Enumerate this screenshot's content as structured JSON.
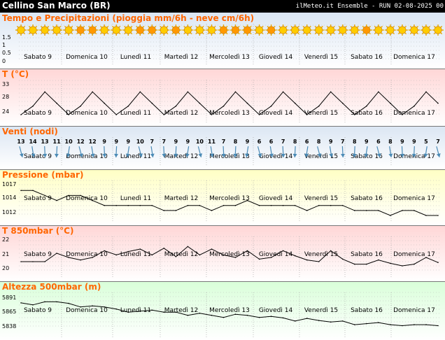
{
  "header": {
    "title": "Cellino San Marco (BR)",
    "run_label": "ilMeteo.it Ensemble - RUN 02-08-2025 00"
  },
  "days": [
    "Sabato 9",
    "Domenica 10",
    "Lunedì 11",
    "Martedì 12",
    "Mercoledì 13",
    "Giovedì 14",
    "Venerdì 15",
    "Sabato 16",
    "Domenica 17"
  ],
  "panels": [
    {
      "key": "precip",
      "title": "Tempo e Precipitazioni (pioggia mm/6h - neve cm/6h)",
      "bg": [
        "#dbe6f3",
        "#ffffff"
      ]
    },
    {
      "key": "temp",
      "title": "T (°C)",
      "bg": [
        "#ffd6d6",
        "#ffffff"
      ]
    },
    {
      "key": "wind",
      "title": "Venti (nodi)",
      "bg": [
        "#dbe6f3",
        "#ffffff"
      ]
    },
    {
      "key": "press",
      "title": "Pressione (mbar)",
      "bg": [
        "#ffffc4",
        "#ffffff"
      ]
    },
    {
      "key": "t850",
      "title": "T 850mbar (°C)",
      "bg": [
        "#ffd6d6",
        "#ffffff"
      ]
    },
    {
      "key": "z500",
      "title": "Altezza 500mbar (m)",
      "bg": [
        "#d9ffd9",
        "#ffffff"
      ]
    }
  ],
  "weather_icons": {
    "icon": "sun-icon",
    "count": 36,
    "colors": [
      "#ffcc00",
      "#ff9900"
    ],
    "pattern": [
      "yellow",
      "yellow",
      "yellow",
      "yellow",
      "yellow",
      "orange",
      "orange",
      "yellow",
      "yellow",
      "yellow",
      "orange",
      "orange",
      "yellow",
      "orange",
      "yellow",
      "yellow",
      "yellow",
      "orange",
      "orange",
      "orange",
      "yellow",
      "orange",
      "yellow",
      "yellow",
      "yellow",
      "yellow",
      "yellow",
      "yellow",
      "yellow",
      "orange",
      "yellow",
      "yellow",
      "yellow",
      "yellow",
      "yellow",
      "yellow"
    ]
  },
  "wind_arrow_icon": "wind-arrow-icon",
  "chart_data": [
    {
      "type": "bar",
      "title": "Tempo e Precipitazioni (pioggia mm/6h - neve cm/6h)",
      "ylim": [
        0,
        1.5
      ],
      "yticks": [
        "1.5",
        "1",
        "0.5",
        "0"
      ],
      "series": [
        {
          "values": [
            0,
            0,
            0,
            0,
            0,
            0,
            0,
            0,
            0,
            0,
            0,
            0,
            0,
            0,
            0,
            0,
            0,
            0,
            0,
            0,
            0,
            0,
            0,
            0,
            0,
            0,
            0,
            0,
            0,
            0,
            0,
            0,
            0,
            0,
            0,
            0
          ]
        }
      ]
    },
    {
      "type": "line",
      "title": "T (°C)",
      "ylim": [
        22,
        35
      ],
      "yticks": [
        "33",
        "28",
        "24"
      ],
      "color": "#000000",
      "series": [
        {
          "values": [
            23,
            26,
            31,
            27,
            23,
            26,
            31,
            27,
            23,
            26,
            31,
            27,
            23,
            26,
            31,
            27,
            23,
            26,
            31,
            27,
            23,
            26,
            31,
            27,
            23,
            26,
            31,
            27,
            23,
            26,
            31,
            27,
            23,
            26,
            31,
            27
          ]
        }
      ]
    },
    {
      "type": "table",
      "title": "Venti (nodi)",
      "series": [
        {
          "values": [
            13,
            14,
            13,
            11,
            10,
            12,
            12,
            9,
            9,
            9,
            10,
            7,
            7,
            9,
            9,
            10,
            11,
            7,
            8,
            9,
            6,
            6,
            7,
            8,
            6,
            8,
            9,
            7,
            8,
            9,
            6,
            8,
            9,
            9,
            5,
            7
          ]
        }
      ]
    },
    {
      "type": "line",
      "title": "Pressione (mbar)",
      "ylim": [
        1011,
        1018
      ],
      "yticks": [
        "1017",
        "1014",
        "1012"
      ],
      "color": "#000000",
      "series": [
        {
          "values": [
            1016,
            1016,
            1015,
            1014,
            1015,
            1015,
            1014,
            1013,
            1013,
            1013,
            1013,
            1013,
            1012,
            1012,
            1013,
            1013,
            1012,
            1013,
            1013,
            1014,
            1013,
            1013,
            1013,
            1013,
            1012,
            1013,
            1013,
            1013,
            1012,
            1012,
            1012,
            1011,
            1012,
            1012,
            1011,
            1011
          ]
        }
      ]
    },
    {
      "type": "line",
      "title": "T 850mbar (°C)",
      "ylim": [
        19,
        23
      ],
      "yticks": [
        "22",
        "21",
        "20"
      ],
      "color": "#000000",
      "series": [
        {
          "values": [
            20,
            20,
            20,
            21,
            20.5,
            20.2,
            20.5,
            21.3,
            20.8,
            21.2,
            21.5,
            20.8,
            21.6,
            20.6,
            21.8,
            20.8,
            21.5,
            20.8,
            20.5,
            21.3,
            20.3,
            20.5,
            21.3,
            20.7,
            20.2,
            20,
            21.3,
            20.3,
            19.7,
            19.7,
            20.2,
            19.8,
            19.5,
            19.7,
            20.5,
            19.9
          ]
        }
      ]
    },
    {
      "type": "line",
      "title": "Altezza 500mbar (m)",
      "ylim": [
        5830,
        5900
      ],
      "yticks": [
        "5891",
        "5865",
        "5838"
      ],
      "color": "#000000",
      "series": [
        {
          "values": [
            5880,
            5876,
            5882,
            5882,
            5879,
            5872,
            5874,
            5872,
            5868,
            5862,
            5864,
            5866,
            5862,
            5862,
            5856,
            5860,
            5856,
            5852,
            5858,
            5856,
            5852,
            5854,
            5851,
            5845,
            5850,
            5846,
            5843,
            5845,
            5838,
            5840,
            5842,
            5838,
            5836,
            5838,
            5838,
            5836
          ]
        }
      ]
    }
  ]
}
